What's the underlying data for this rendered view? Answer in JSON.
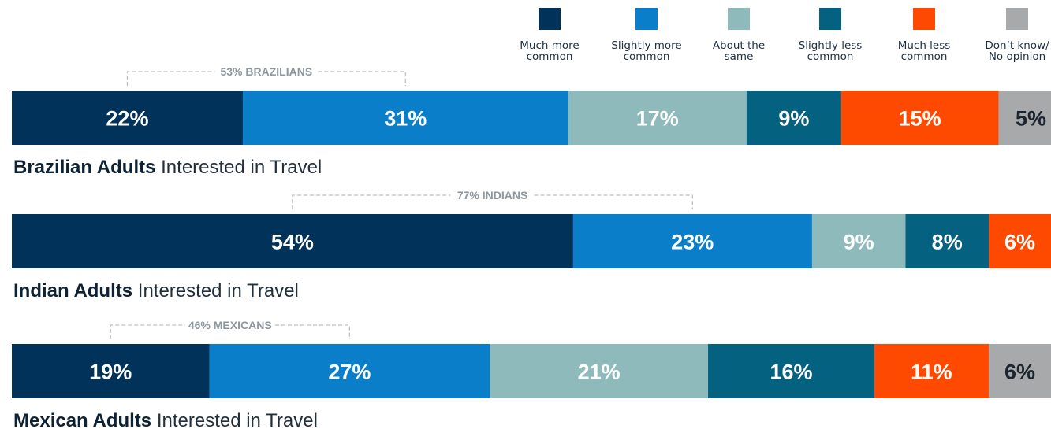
{
  "colors": {
    "Much more common": "#00325a",
    "Slightly more common": "#0a7ec9",
    "About the same": "#8fbabb",
    "Slightly less common": "#056180",
    "Much less common": "#fe4a00",
    "Don’t know/ No opinion": "#a8a9ab"
  },
  "chart_data": {
    "type": "bar",
    "orientation": "horizontal-stacked",
    "legend": {
      "placement": "top-right",
      "entries": [
        {
          "name": "Much more common",
          "lines": [
            "Much more",
            "common"
          ]
        },
        {
          "name": "Slightly more common",
          "lines": [
            "Slightly more",
            "common"
          ]
        },
        {
          "name": "About the same",
          "lines": [
            "About the",
            "same"
          ]
        },
        {
          "name": "Slightly less common",
          "lines": [
            "Slightly less",
            "common"
          ]
        },
        {
          "name": "Much less common",
          "lines": [
            "Much less",
            "common"
          ]
        },
        {
          "name": "Don’t know/ No opinion",
          "lines": [
            "Don’t know/",
            "No opinion"
          ]
        }
      ]
    },
    "bars": [
      {
        "caption_bold": "Brazilian Adults",
        "caption_rest": "Interested in Travel",
        "bracket_label": "53% BRAZILIANS",
        "bracket_span": 2,
        "segments": [
          {
            "category": "Much more common",
            "value": 22,
            "label": "22%"
          },
          {
            "category": "Slightly more common",
            "value": 31,
            "label": "31%"
          },
          {
            "category": "About the same",
            "value": 17,
            "label": "17%"
          },
          {
            "category": "Slightly less common",
            "value": 9,
            "label": "9%"
          },
          {
            "category": "Much less common",
            "value": 15,
            "label": "15%"
          },
          {
            "category": "Don’t know/ No opinion",
            "value": 5,
            "label": "5%"
          }
        ]
      },
      {
        "caption_bold": "Indian Adults",
        "caption_rest": "Interested in Travel",
        "bracket_label": "77% INDIANS",
        "bracket_span": 2,
        "segments": [
          {
            "category": "Much more common",
            "value": 54,
            "label": "54%"
          },
          {
            "category": "Slightly more common",
            "value": 23,
            "label": "23%"
          },
          {
            "category": "About the same",
            "value": 9,
            "label": "9%"
          },
          {
            "category": "Slightly less common",
            "value": 8,
            "label": "8%"
          },
          {
            "category": "Much less common",
            "value": 6,
            "label": "6%"
          }
        ]
      },
      {
        "caption_bold": "Mexican Adults",
        "caption_rest": "Interested in Travel",
        "bracket_label": "46% MEXICANS",
        "bracket_span": 2,
        "segments": [
          {
            "category": "Much more common",
            "value": 19,
            "label": "19%"
          },
          {
            "category": "Slightly more common",
            "value": 27,
            "label": "27%"
          },
          {
            "category": "About the same",
            "value": 21,
            "label": "21%"
          },
          {
            "category": "Slightly less common",
            "value": 16,
            "label": "16%"
          },
          {
            "category": "Much less common",
            "value": 11,
            "label": "11%"
          },
          {
            "category": "Don’t know/ No opinion",
            "value": 6,
            "label": "6%"
          }
        ]
      }
    ]
  }
}
